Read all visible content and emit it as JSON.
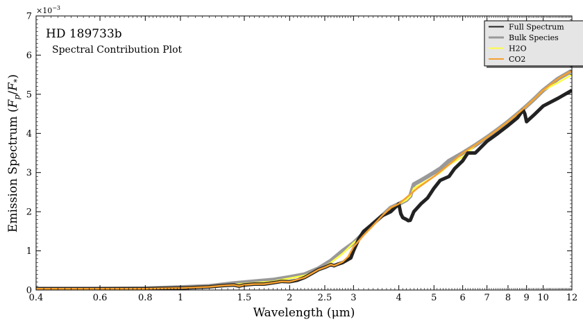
{
  "chart_data": {
    "type": "line",
    "title": "HD 189733b",
    "subtitle": "Spectral Contribution Plot",
    "xlabel": "Wavelength (μm)",
    "ylabel": "Emission Spectrum (F_p/F_*)",
    "ylabel_parts": {
      "main": "Emission Spectrum (",
      "F": "F",
      "p": "p",
      "slash": "/",
      "star": "*",
      "close": ")"
    },
    "y_multiplier": "×10",
    "y_multiplier_exp": "−3",
    "x_scale": "log",
    "xlim": [
      0.4,
      12
    ],
    "ylim": [
      0,
      0.007
    ],
    "x_ticks": [
      0.4,
      0.6,
      0.8,
      1,
      1.5,
      2,
      2.5,
      3,
      4,
      5,
      6,
      7,
      8,
      9,
      10,
      12
    ],
    "x_tick_labels": [
      "0.4",
      "0.6",
      "0.8",
      "1",
      "1.5",
      "2",
      "2.5",
      "3",
      "4",
      "5",
      "6",
      "7",
      "8",
      "9",
      "10",
      "12"
    ],
    "y_ticks": [
      0,
      0.001,
      0.002,
      0.003,
      0.004,
      0.005,
      0.006,
      0.007
    ],
    "y_tick_labels": [
      "0",
      "1",
      "2",
      "3",
      "4",
      "5",
      "6",
      "7"
    ],
    "legend_position": "top-right",
    "grid": false,
    "series": [
      {
        "name": "Full Spectrum",
        "color": "#222222",
        "x": [
          0.4,
          0.6,
          0.8,
          1.0,
          1.2,
          1.3,
          1.4,
          1.45,
          1.5,
          1.6,
          1.7,
          1.85,
          1.9,
          2.0,
          2.1,
          2.2,
          2.3,
          2.4,
          2.5,
          2.6,
          2.65,
          2.7,
          2.8,
          2.9,
          2.95,
          3.0,
          3.1,
          3.2,
          3.4,
          3.6,
          3.8,
          4.0,
          4.05,
          4.1,
          4.2,
          4.25,
          4.3,
          4.4,
          4.6,
          4.8,
          5.0,
          5.2,
          5.5,
          5.7,
          6.0,
          6.2,
          6.5,
          7.0,
          7.5,
          8.0,
          8.5,
          8.8,
          8.9,
          9.0,
          9.5,
          10.0,
          11.0,
          12.0
        ],
        "y": [
          3e-05,
          3e-05,
          3e-05,
          5e-05,
          8e-05,
          0.00011,
          0.00013,
          0.0001,
          0.00013,
          0.00015,
          0.00015,
          0.0002,
          0.00022,
          0.00021,
          0.00025,
          0.00032,
          0.00042,
          0.00052,
          0.00058,
          0.00065,
          0.00062,
          0.00065,
          0.0007,
          0.00078,
          0.00082,
          0.001,
          0.0013,
          0.0015,
          0.0017,
          0.0019,
          0.002,
          0.0022,
          0.00195,
          0.00185,
          0.0018,
          0.00177,
          0.00178,
          0.002,
          0.0022,
          0.00235,
          0.0026,
          0.0028,
          0.0029,
          0.0031,
          0.0033,
          0.0035,
          0.0035,
          0.0038,
          0.004,
          0.0042,
          0.0044,
          0.0046,
          0.0045,
          0.0043,
          0.0045,
          0.0047,
          0.0049,
          0.0051
        ]
      },
      {
        "name": "Bulk Species",
        "color": "#999999",
        "x": [
          0.4,
          0.6,
          0.8,
          1.0,
          1.2,
          1.4,
          1.6,
          1.8,
          2.0,
          2.2,
          2.4,
          2.6,
          2.8,
          3.0,
          3.2,
          3.4,
          3.6,
          3.8,
          4.0,
          4.2,
          4.3,
          4.4,
          4.6,
          4.8,
          5.0,
          5.2,
          5.5,
          6.0,
          6.5,
          7.0,
          7.5,
          8.0,
          8.5,
          9.0,
          9.5,
          10.0,
          11.0,
          12.0
        ],
        "y": [
          3e-05,
          3e-05,
          4e-05,
          7e-05,
          0.0001,
          0.00017,
          0.00022,
          0.00026,
          0.00033,
          0.0004,
          0.00055,
          0.00075,
          0.001,
          0.0012,
          0.00145,
          0.0017,
          0.0019,
          0.0021,
          0.0022,
          0.0023,
          0.0024,
          0.0027,
          0.0028,
          0.0029,
          0.003,
          0.0031,
          0.0033,
          0.0035,
          0.0037,
          0.0039,
          0.0041,
          0.0043,
          0.0045,
          0.0047,
          0.0049,
          0.0051,
          0.0054,
          0.0056
        ]
      },
      {
        "name": "H2O",
        "color": "#ffff44",
        "x": [
          0.4,
          0.6,
          0.8,
          1.0,
          1.2,
          1.4,
          1.6,
          1.8,
          2.0,
          2.2,
          2.4,
          2.6,
          2.8,
          3.0,
          3.2,
          3.4,
          3.6,
          3.8,
          4.0,
          4.2,
          4.3,
          4.4,
          4.6,
          4.8,
          5.0,
          5.2,
          5.5,
          6.0,
          6.5,
          7.0,
          7.5,
          8.0,
          8.5,
          9.0,
          9.5,
          10.0,
          11.0,
          12.0
        ],
        "y": [
          3e-05,
          3e-05,
          4e-05,
          6e-05,
          0.0001,
          0.00014,
          0.00018,
          0.00022,
          0.0003,
          0.00037,
          0.0005,
          0.0007,
          0.00093,
          0.0012,
          0.0014,
          0.00165,
          0.0019,
          0.0021,
          0.0022,
          0.0023,
          0.0024,
          0.0026,
          0.0027,
          0.0028,
          0.0029,
          0.003,
          0.0032,
          0.0034,
          0.0037,
          0.0039,
          0.0041,
          0.0043,
          0.0045,
          0.0047,
          0.0049,
          0.0051,
          0.0053,
          0.0055
        ]
      },
      {
        "name": "CO2",
        "color": "#f5a030",
        "x": [
          0.4,
          0.6,
          0.8,
          1.0,
          1.2,
          1.3,
          1.4,
          1.45,
          1.5,
          1.6,
          1.7,
          1.85,
          1.9,
          2.0,
          2.2,
          2.4,
          2.5,
          2.6,
          2.65,
          2.7,
          2.8,
          2.9,
          3.0,
          3.2,
          3.4,
          3.6,
          3.8,
          4.0,
          4.5,
          5.0,
          5.5,
          6.0,
          6.5,
          7.0,
          7.5,
          8.0,
          8.5,
          9.0,
          9.5,
          10.0,
          11.0,
          12.0
        ],
        "y": [
          3e-05,
          3e-05,
          3e-05,
          5e-05,
          8e-05,
          0.00011,
          0.00013,
          0.0001,
          0.00013,
          0.00015,
          0.00015,
          0.0002,
          0.00022,
          0.00021,
          0.00032,
          0.00052,
          0.00058,
          0.00065,
          0.00062,
          0.00065,
          0.00072,
          0.00085,
          0.0011,
          0.0014,
          0.00165,
          0.0019,
          0.0021,
          0.0022,
          0.0026,
          0.0029,
          0.0032,
          0.0035,
          0.0037,
          0.0039,
          0.0041,
          0.0043,
          0.0045,
          0.0047,
          0.0049,
          0.0051,
          0.0054,
          0.0056
        ]
      }
    ]
  }
}
